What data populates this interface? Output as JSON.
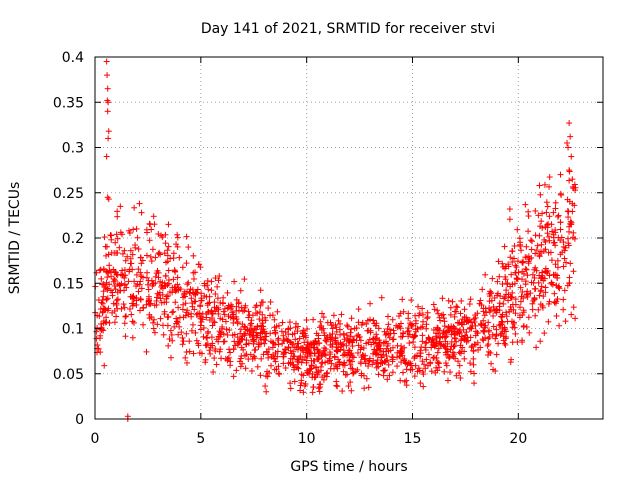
{
  "chart_data": {
    "type": "scatter",
    "title": "Day 141 of 2021, SRMTID for receiver stvi",
    "xlabel": "GPS time / hours",
    "ylabel": "SRMTID / TECUs",
    "xlim": [
      0,
      24
    ],
    "ylim": [
      0,
      0.4
    ],
    "x_ticks": [
      0,
      5,
      10,
      15,
      20
    ],
    "x_tick_labels": [
      "0",
      "5",
      "10",
      "15",
      "20"
    ],
    "y_ticks": [
      0,
      0.05,
      0.1,
      0.15,
      0.2,
      0.25,
      0.3,
      0.35,
      0.4
    ],
    "y_tick_labels": [
      "0",
      "0.05",
      "0.1",
      "0.15",
      "0.2",
      "0.25",
      "0.3",
      "0.35",
      "0.4"
    ],
    "grid": true,
    "marker": "plus",
    "color": "#ff0000",
    "data_x_range": [
      0,
      22.7
    ],
    "series": [
      {
        "name": "SRMTID",
        "baseline_profile": [
          [
            0,
            0.1
          ],
          [
            0.5,
            0.14
          ],
          [
            1,
            0.15
          ],
          [
            2,
            0.16
          ],
          [
            3,
            0.15
          ],
          [
            4,
            0.13
          ],
          [
            5,
            0.12
          ],
          [
            6,
            0.1
          ],
          [
            7,
            0.095
          ],
          [
            8,
            0.09
          ],
          [
            9,
            0.075
          ],
          [
            10,
            0.07
          ],
          [
            11,
            0.072
          ],
          [
            12,
            0.075
          ],
          [
            13,
            0.08
          ],
          [
            14,
            0.08
          ],
          [
            15,
            0.085
          ],
          [
            16,
            0.088
          ],
          [
            17,
            0.09
          ],
          [
            18,
            0.095
          ],
          [
            19,
            0.12
          ],
          [
            20,
            0.15
          ],
          [
            21,
            0.17
          ],
          [
            22,
            0.19
          ],
          [
            22.7,
            0.21
          ]
        ],
        "outliers": [
          [
            0.55,
            0.395
          ],
          [
            0.57,
            0.38
          ],
          [
            0.6,
            0.365
          ],
          [
            0.58,
            0.352
          ],
          [
            0.62,
            0.35
          ],
          [
            0.6,
            0.34
          ],
          [
            0.65,
            0.318
          ],
          [
            0.62,
            0.31
          ],
          [
            0.55,
            0.29
          ],
          [
            0.6,
            0.245
          ],
          [
            0.65,
            0.243
          ],
          [
            2.1,
            0.238
          ],
          [
            2.2,
            0.228
          ],
          [
            22.4,
            0.327
          ],
          [
            22.45,
            0.312
          ],
          [
            22.3,
            0.305
          ],
          [
            22.5,
            0.29
          ],
          [
            22.4,
            0.275
          ],
          [
            22.55,
            0.265
          ],
          [
            22.6,
            0.255
          ],
          [
            21.0,
            0.258
          ],
          [
            19.6,
            0.232
          ]
        ],
        "marked_points": [
          [
            1.55,
            0.0
          ],
          [
            1.55,
            0.003
          ]
        ]
      }
    ]
  }
}
